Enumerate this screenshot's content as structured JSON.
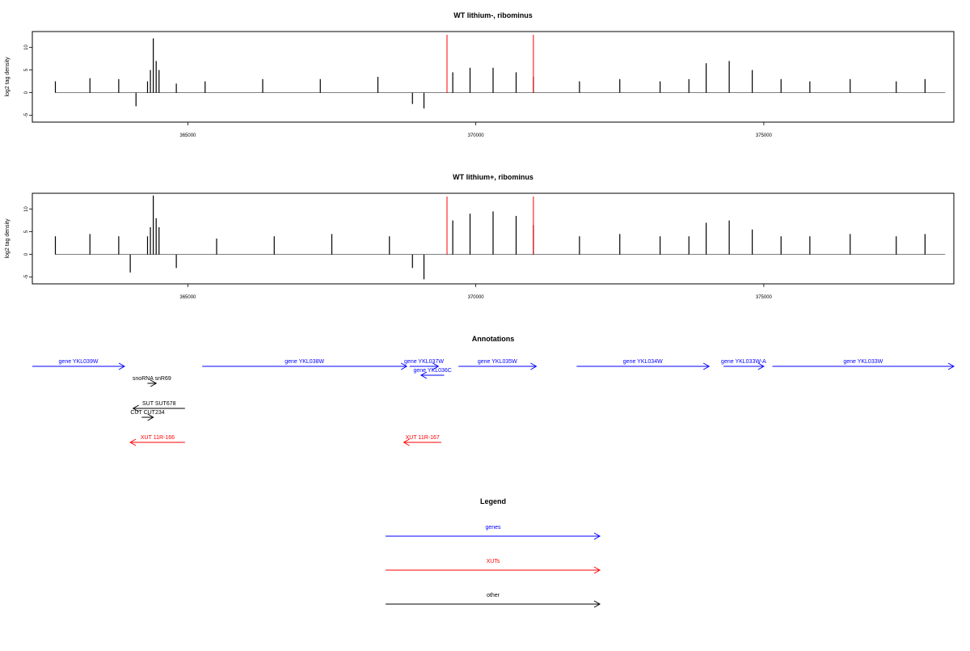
{
  "chart_data": [
    {
      "type": "bar",
      "title": "WT lithium-, ribominus",
      "ylabel": "log2 tag density",
      "xlabel": "",
      "xlim": [
        362300,
        378300
      ],
      "ylim": [
        -6.5,
        13.5
      ],
      "x_ticks": [
        365000,
        370000,
        375000
      ],
      "x_tick_labels": [
        "365000",
        "370000",
        "375000"
      ],
      "y_ticks": [
        -5,
        0,
        5,
        10
      ],
      "y_tick_labels": [
        "-5",
        "0",
        "5",
        "10"
      ],
      "marker_lines": {
        "x": [
          369500,
          371000
        ],
        "color": "#ff0000"
      },
      "series": [
        {
          "values_x": [
            362700,
            363300,
            363800,
            364100,
            364300,
            364350,
            364400,
            364450,
            364500,
            364800,
            365300,
            366300,
            367300,
            368300,
            368900,
            369100,
            369600,
            369900,
            370300,
            370700,
            371000,
            371800,
            372500,
            373200,
            373700,
            374000,
            374400,
            374800,
            375300,
            375800,
            376500,
            377300,
            377800
          ],
          "values_y": [
            2.5,
            3.2,
            3.0,
            -3.0,
            2.5,
            5.0,
            12.0,
            7.0,
            5.0,
            2.0,
            2.5,
            3.0,
            3.0,
            3.5,
            -2.5,
            -3.5,
            4.5,
            5.5,
            5.5,
            4.5,
            3.5,
            2.5,
            3.0,
            2.5,
            3.0,
            6.5,
            7.0,
            5.0,
            3.0,
            2.5,
            3.0,
            2.5,
            3.0
          ]
        }
      ]
    },
    {
      "type": "bar",
      "title": "WT lithium+, ribominus",
      "ylabel": "log2 tag density",
      "xlabel": "",
      "xlim": [
        362300,
        378300
      ],
      "ylim": [
        -6.5,
        13.5
      ],
      "x_ticks": [
        365000,
        370000,
        375000
      ],
      "x_tick_labels": [
        "365000",
        "370000",
        "375000"
      ],
      "y_ticks": [
        -5,
        0,
        5,
        10
      ],
      "y_tick_labels": [
        "-5",
        "0",
        "5",
        "10"
      ],
      "marker_lines": {
        "x": [
          369500,
          371000
        ],
        "color": "#ff0000"
      },
      "series": [
        {
          "values_x": [
            362700,
            363300,
            363800,
            364000,
            364300,
            364350,
            364400,
            364450,
            364500,
            364800,
            365500,
            366500,
            367500,
            368500,
            368900,
            369100,
            369600,
            369900,
            370300,
            370700,
            371000,
            371800,
            372500,
            373200,
            373700,
            374000,
            374400,
            374800,
            375300,
            375800,
            376500,
            377300,
            377800
          ],
          "values_y": [
            4.0,
            4.5,
            4.0,
            -4.0,
            4.0,
            6.0,
            13.0,
            8.0,
            6.0,
            -3.0,
            3.5,
            4.0,
            4.5,
            4.0,
            -3.0,
            -5.5,
            7.5,
            9.0,
            9.5,
            8.5,
            6.5,
            4.0,
            4.5,
            4.0,
            4.0,
            7.0,
            7.5,
            5.5,
            4.0,
            4.0,
            4.5,
            4.0,
            4.5
          ]
        }
      ]
    }
  ],
  "annotations": {
    "title": "Annotations",
    "features": [
      {
        "label": "gene YKL039W",
        "start": 362300,
        "end": 363900,
        "strand": "+",
        "row": 0,
        "color": "#0000ff"
      },
      {
        "label": "gene YKL038W",
        "start": 365250,
        "end": 368800,
        "strand": "+",
        "row": 0,
        "color": "#0000ff"
      },
      {
        "label": "gene YKL037W",
        "start": 368850,
        "end": 369350,
        "strand": "+",
        "row": 0,
        "color": "#0000ff"
      },
      {
        "label": "gene YKL036C",
        "start": 369050,
        "end": 369450,
        "strand": "-",
        "row": 1,
        "color": "#0000ff"
      },
      {
        "label": "gene YKL035W",
        "start": 369700,
        "end": 371050,
        "strand": "+",
        "row": 0,
        "color": "#0000ff"
      },
      {
        "label": "gene YKL034W",
        "start": 371750,
        "end": 374050,
        "strand": "+",
        "row": 0,
        "color": "#0000ff"
      },
      {
        "label": "gene YKL033W-A",
        "start": 374300,
        "end": 375000,
        "strand": "+",
        "row": 0,
        "color": "#0000ff"
      },
      {
        "label": "gene YKL033W",
        "start": 375150,
        "end": 378300,
        "strand": "+",
        "row": 0,
        "color": "#0000ff"
      },
      {
        "label": "snoRNA snR69",
        "start": 364300,
        "end": 364450,
        "strand": "+",
        "row": 2,
        "color": "#000000"
      },
      {
        "label": "SUT SUT678",
        "start": 364050,
        "end": 364950,
        "strand": "-",
        "row": 3,
        "color": "#000000"
      },
      {
        "label": "CUT CUT234",
        "start": 364200,
        "end": 364400,
        "strand": "+",
        "row": 4,
        "color": "#000000"
      },
      {
        "label": "XUT 11R-166",
        "start": 364000,
        "end": 364950,
        "strand": "-",
        "row": 5,
        "color": "#ff0000"
      },
      {
        "label": "XUT 11R-167",
        "start": 368750,
        "end": 369400,
        "strand": "-",
        "row": 5,
        "color": "#ff0000"
      }
    ]
  },
  "legend": {
    "title": "Legend",
    "items": [
      {
        "label": "genes",
        "color": "#0000ff"
      },
      {
        "label": "XUTs",
        "color": "#ff0000"
      },
      {
        "label": "other",
        "color": "#000000"
      }
    ]
  }
}
